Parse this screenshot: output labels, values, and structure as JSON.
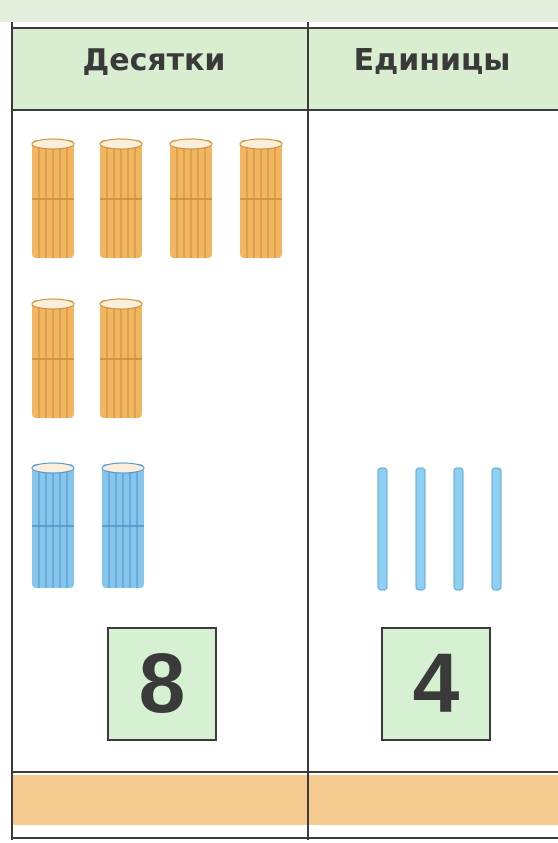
{
  "table": {
    "headers": [
      "Десятки",
      "Единицы"
    ],
    "digits": [
      8,
      4
    ]
  }
}
